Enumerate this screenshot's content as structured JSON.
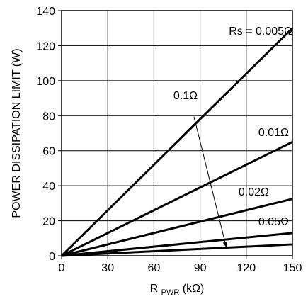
{
  "chart_data": {
    "type": "line",
    "title": "",
    "xlabel": "R",
    "xlabel_sub": "PWR",
    "xlabel_unit": " (kΩ)",
    "ylabel": "POWER DISSIPATION LIMIT (W)",
    "xlim": [
      0,
      150
    ],
    "ylim": [
      0,
      140
    ],
    "x_ticks": [
      0,
      30,
      60,
      90,
      120,
      150
    ],
    "y_ticks": [
      0,
      20,
      40,
      60,
      80,
      100,
      120,
      140
    ],
    "grid": true,
    "series": [
      {
        "name": "Rs = 0.005Ω",
        "x": [
          0,
          150
        ],
        "y": [
          0,
          130
        ]
      },
      {
        "name": "0.01Ω",
        "x": [
          0,
          150
        ],
        "y": [
          0,
          65
        ]
      },
      {
        "name": "0.02Ω",
        "x": [
          0,
          150
        ],
        "y": [
          0,
          32.5
        ]
      },
      {
        "name": "0.05Ω",
        "x": [
          0,
          150
        ],
        "y": [
          0,
          13
        ]
      },
      {
        "name": "0.1Ω",
        "x": [
          0,
          150
        ],
        "y": [
          0,
          6.5
        ]
      }
    ],
    "annotation_arrow": {
      "label": "0.1Ω",
      "from": [
        92,
        77
      ],
      "to": [
        107,
        5
      ]
    }
  }
}
